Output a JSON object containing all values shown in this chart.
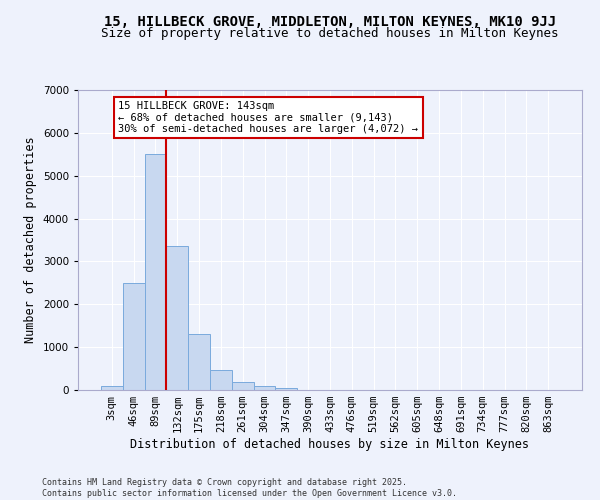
{
  "title_line1": "15, HILLBECK GROVE, MIDDLETON, MILTON KEYNES, MK10 9JJ",
  "title_line2": "Size of property relative to detached houses in Milton Keynes",
  "xlabel": "Distribution of detached houses by size in Milton Keynes",
  "ylabel": "Number of detached properties",
  "bar_color": "#c8d8f0",
  "bar_edge_color": "#7aaadd",
  "background_color": "#eef2fc",
  "grid_color": "#ffffff",
  "categories": [
    "3sqm",
    "46sqm",
    "89sqm",
    "132sqm",
    "175sqm",
    "218sqm",
    "261sqm",
    "304sqm",
    "347sqm",
    "390sqm",
    "433sqm",
    "476sqm",
    "519sqm",
    "562sqm",
    "605sqm",
    "648sqm",
    "691sqm",
    "734sqm",
    "777sqm",
    "820sqm",
    "863sqm"
  ],
  "values": [
    100,
    2500,
    5500,
    3350,
    1300,
    460,
    190,
    90,
    40,
    5,
    3,
    2,
    1,
    0,
    0,
    0,
    0,
    0,
    0,
    0,
    0
  ],
  "vline_pos": 2.5,
  "vline_color": "#cc0000",
  "annotation_text": "15 HILLBECK GROVE: 143sqm\n← 68% of detached houses are smaller (9,143)\n30% of semi-detached houses are larger (4,072) →",
  "annotation_box_color": "#cc0000",
  "ylim": [
    0,
    7000
  ],
  "yticks": [
    0,
    1000,
    2000,
    3000,
    4000,
    5000,
    6000,
    7000
  ],
  "footer_text": "Contains HM Land Registry data © Crown copyright and database right 2025.\nContains public sector information licensed under the Open Government Licence v3.0.",
  "title_fontsize": 10,
  "subtitle_fontsize": 9,
  "axis_label_fontsize": 8.5,
  "tick_fontsize": 7.5,
  "annot_fontsize": 7.5
}
